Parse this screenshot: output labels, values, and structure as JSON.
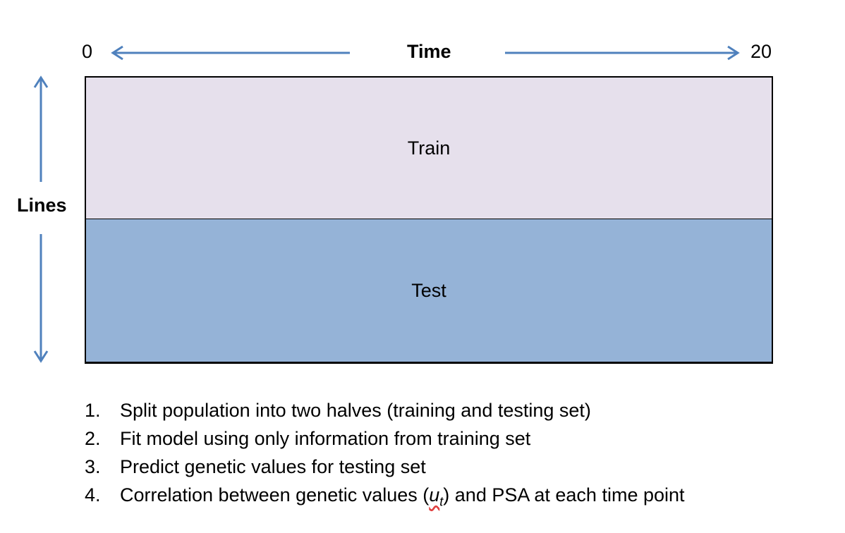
{
  "colors": {
    "arrow": "#4f81bd",
    "train_fill": "#e6e0ec",
    "test_fill": "#95b3d7"
  },
  "axis": {
    "start_label": "0",
    "end_label": "20",
    "time_label": "Time",
    "lines_label": "Lines"
  },
  "regions": {
    "train_label": "Train",
    "test_label": "Test"
  },
  "steps": [
    {
      "number": "1.",
      "text_before": "Split population into two halves (training and testing set)",
      "subscript": "",
      "text_after": ""
    },
    {
      "number": "2.",
      "text_before": "Fit model using only information from training set",
      "subscript": "",
      "text_after": ""
    },
    {
      "number": "3.",
      "text_before": "Predict genetic values for testing set",
      "subscript": "",
      "text_after": ""
    },
    {
      "number": "4.",
      "text_before": "Correlation between genetic values (",
      "variable": "u",
      "subscript": "t",
      "text_after": ") and PSA at each time point"
    }
  ]
}
